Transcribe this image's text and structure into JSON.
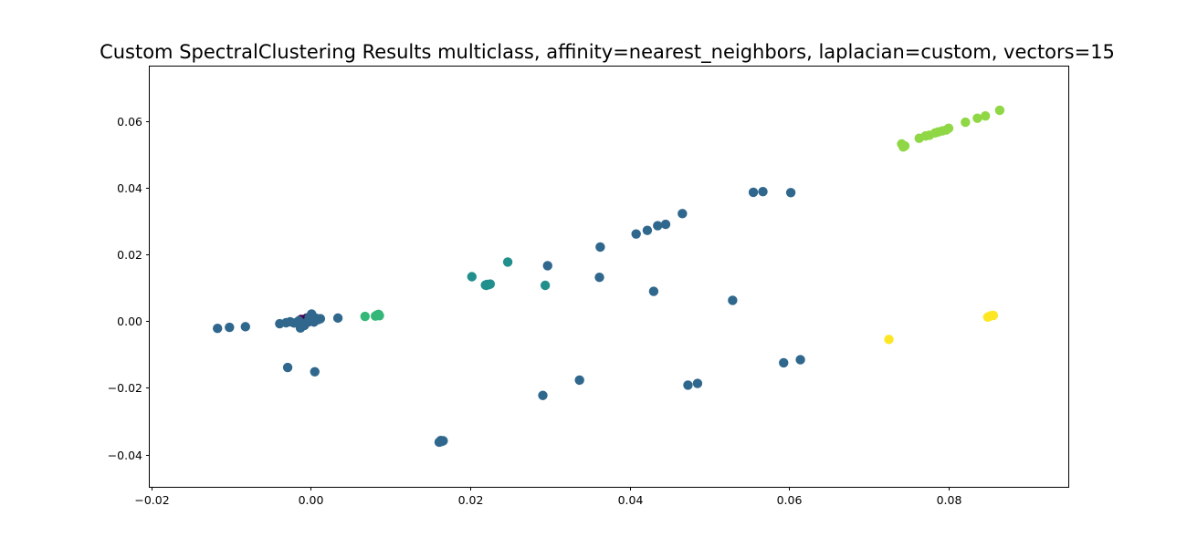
{
  "chart_data": {
    "type": "scatter",
    "title": "Custom SpectralClustering Results multiclass, affinity=nearest_neighbors, laplacian=custom, vectors=15",
    "xlabel": "",
    "ylabel": "",
    "xlim": [
      -0.0202,
      0.095
    ],
    "ylim": [
      -0.0497,
      0.0763
    ],
    "x_ticks": [
      -0.02,
      0.0,
      0.02,
      0.04,
      0.06,
      0.08
    ],
    "x_tick_labels": [
      "−0.02",
      "0.00",
      "0.02",
      "0.04",
      "0.06",
      "0.08"
    ],
    "y_ticks": [
      -0.04,
      -0.02,
      0.0,
      0.02,
      0.04,
      0.06
    ],
    "y_tick_labels": [
      "−0.04",
      "−0.02",
      "0.00",
      "0.02",
      "0.04",
      "0.06"
    ],
    "grid": false,
    "legend": "none",
    "series": [
      {
        "color": "#440154",
        "points": [
          [
            -0.0012,
            0.0005
          ],
          [
            -0.0009,
            0.0003
          ],
          [
            -0.0006,
            0.0007
          ],
          [
            -0.0004,
            0.0002
          ],
          [
            -0.0002,
            0.0006
          ],
          [
            0.0,
            0.0004
          ],
          [
            -0.0007,
            -0.0003
          ],
          [
            -0.0003,
            -0.0002
          ],
          [
            0.0001,
            0.0001
          ],
          [
            -0.0005,
            0.0009
          ],
          [
            -0.001,
            -0.0001
          ]
        ]
      },
      {
        "color": "#30678d",
        "points": [
          [
            -0.0117,
            -0.0022
          ],
          [
            -0.0102,
            -0.0019
          ],
          [
            -0.0082,
            -0.0017
          ],
          [
            -0.0039,
            -0.0008
          ],
          [
            -0.0031,
            -0.0005
          ],
          [
            -0.0026,
            -0.0002
          ],
          [
            -0.0021,
            -0.0006
          ],
          [
            -0.0015,
            0.0001
          ],
          [
            -0.0011,
            -0.0009
          ],
          [
            -0.0008,
            -0.0013
          ],
          [
            -0.0013,
            -0.0021
          ],
          [
            -0.0005,
            -0.0004
          ],
          [
            -0.0002,
            0.0012
          ],
          [
            0.0001,
            0.0021
          ],
          [
            0.0004,
            -0.0003
          ],
          [
            0.0006,
            0.0009
          ],
          [
            0.0009,
            0.0004
          ],
          [
            0.0012,
            0.0007
          ],
          [
            0.0034,
            0.0009
          ],
          [
            -0.0029,
            -0.0139
          ],
          [
            0.0005,
            -0.0152
          ],
          [
            0.0162,
            -0.0362
          ],
          [
            0.0164,
            -0.0361
          ],
          [
            0.0166,
            -0.0359
          ],
          [
            0.0163,
            -0.0358
          ],
          [
            0.0165,
            -0.036
          ],
          [
            0.0161,
            -0.0363
          ],
          [
            0.0297,
            0.0166
          ],
          [
            0.0291,
            -0.0223
          ],
          [
            0.0337,
            -0.0177
          ],
          [
            0.0363,
            0.0222
          ],
          [
            0.0362,
            0.0131
          ],
          [
            0.0408,
            0.0261
          ],
          [
            0.0422,
            0.0272
          ],
          [
            0.0435,
            0.0286
          ],
          [
            0.0445,
            0.029
          ],
          [
            0.0466,
            0.0322
          ],
          [
            0.043,
            0.0089
          ],
          [
            0.0473,
            -0.0192
          ],
          [
            0.0485,
            -0.0187
          ],
          [
            0.0529,
            0.0062
          ],
          [
            0.0555,
            0.0386
          ],
          [
            0.0567,
            0.0388
          ],
          [
            0.0602,
            0.0385
          ],
          [
            0.0593,
            -0.0125
          ],
          [
            0.0614,
            -0.0116
          ]
        ]
      },
      {
        "color": "#21908d",
        "points": [
          [
            0.0202,
            0.0133
          ],
          [
            0.0219,
            0.0108
          ],
          [
            0.0221,
            0.011
          ],
          [
            0.0223,
            0.0109
          ],
          [
            0.0225,
            0.0111
          ],
          [
            0.022,
            0.0107
          ],
          [
            0.0247,
            0.0177
          ],
          [
            0.0294,
            0.0107
          ]
        ]
      },
      {
        "color": "#35b779",
        "points": [
          [
            0.0068,
            0.0014
          ],
          [
            0.0081,
            0.0015
          ],
          [
            0.0083,
            0.0018
          ],
          [
            0.0085,
            0.002
          ],
          [
            0.0086,
            0.0016
          ]
        ]
      },
      {
        "color": "#8fd744",
        "points": [
          [
            0.0741,
            0.0531
          ],
          [
            0.0743,
            0.0522
          ],
          [
            0.0745,
            0.0525
          ],
          [
            0.0763,
            0.0548
          ],
          [
            0.0771,
            0.0555
          ],
          [
            0.0776,
            0.0557
          ],
          [
            0.0783,
            0.0564
          ],
          [
            0.0787,
            0.0567
          ],
          [
            0.0792,
            0.057
          ],
          [
            0.0797,
            0.0573
          ],
          [
            0.08,
            0.0578
          ],
          [
            0.0821,
            0.0596
          ],
          [
            0.0836,
            0.0608
          ],
          [
            0.0846,
            0.0615
          ],
          [
            0.0864,
            0.0632
          ]
        ]
      },
      {
        "color": "#fde725",
        "points": [
          [
            0.0725,
            -0.0055
          ],
          [
            0.0849,
            0.0012
          ],
          [
            0.0853,
            0.0016
          ],
          [
            0.0856,
            0.0017
          ],
          [
            0.0851,
            0.0014
          ]
        ]
      }
    ]
  }
}
